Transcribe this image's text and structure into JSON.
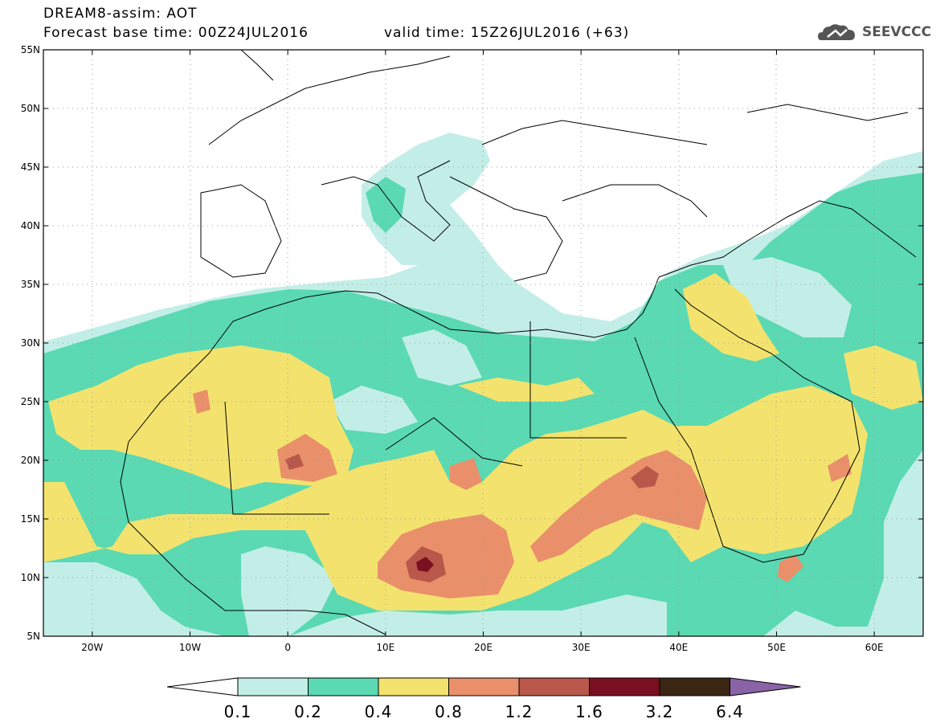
{
  "header": {
    "line1": "DREAM8-assim: AOT",
    "line2": "Forecast base time: 00Z24JUL2016",
    "line3": "valid time: 15Z26JUL2016 (+63)"
  },
  "logo": {
    "text": "SEEVCCC",
    "icon": "cloud-icon"
  },
  "map": {
    "lon_range": [
      -25,
      65
    ],
    "lat_range": [
      5,
      55
    ],
    "lat_ticks": [
      {
        "value": 55,
        "label": "55N"
      },
      {
        "value": 50,
        "label": "50N"
      },
      {
        "value": 45,
        "label": "45N"
      },
      {
        "value": 40,
        "label": "40N"
      },
      {
        "value": 35,
        "label": "35N"
      },
      {
        "value": 30,
        "label": "30N"
      },
      {
        "value": 25,
        "label": "25N"
      },
      {
        "value": 20,
        "label": "20N"
      },
      {
        "value": 15,
        "label": "15N"
      },
      {
        "value": 10,
        "label": "10N"
      },
      {
        "value": 5,
        "label": "5N"
      }
    ],
    "lon_ticks": [
      {
        "value": -20,
        "label": "20W"
      },
      {
        "value": -10,
        "label": "10W"
      },
      {
        "value": 0,
        "label": "0"
      },
      {
        "value": 10,
        "label": "10E"
      },
      {
        "value": 20,
        "label": "20E"
      },
      {
        "value": 30,
        "label": "30E"
      },
      {
        "value": 40,
        "label": "40E"
      },
      {
        "value": 50,
        "label": "50E"
      },
      {
        "value": 60,
        "label": "60E"
      }
    ],
    "grid": "dotted"
  },
  "colorbar": {
    "labels": [
      "0.1",
      "0.2",
      "0.4",
      "0.8",
      "1.2",
      "1.6",
      "3.2",
      "6.4"
    ],
    "colors": [
      "#c3eee8",
      "#5ad9b3",
      "#f3e36e",
      "#e9906a",
      "#b9574a",
      "#7a0f22",
      "#3b2614",
      "#8a63a6"
    ],
    "left_end_color": "#ffffff"
  }
}
